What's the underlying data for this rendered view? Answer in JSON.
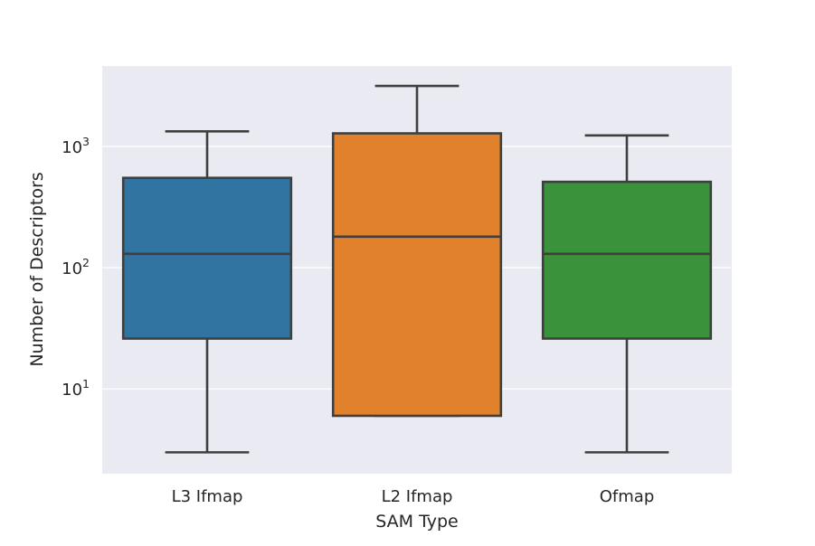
{
  "chart_data": {
    "type": "box",
    "title": "",
    "xlabel": "SAM Type",
    "ylabel": "Number of Descriptors",
    "yscale": "log",
    "ylim": [
      2.0,
      4600
    ],
    "grid": true,
    "background": "#eaeaf2",
    "yticks": [
      {
        "value": 10,
        "base": "10",
        "exp": "1"
      },
      {
        "value": 100,
        "base": "10",
        "exp": "2"
      },
      {
        "value": 1000,
        "base": "10",
        "exp": "3"
      }
    ],
    "categories": [
      "L3 Ifmap",
      "L2 Ifmap",
      "Ofmap"
    ],
    "colors": [
      "#3274a1",
      "#e1812c",
      "#3a923a"
    ],
    "boxes": [
      {
        "category": "L3 Ifmap",
        "whisker_low": 3,
        "q1": 26,
        "median": 130,
        "q3": 550,
        "whisker_high": 1330
      },
      {
        "category": "L2 Ifmap",
        "whisker_low": 6,
        "q1": 6,
        "median": 180,
        "q3": 1280,
        "whisker_high": 3150
      },
      {
        "category": "Ofmap",
        "whisker_low": 3,
        "q1": 26,
        "median": 130,
        "q3": 510,
        "whisker_high": 1230
      }
    ]
  }
}
